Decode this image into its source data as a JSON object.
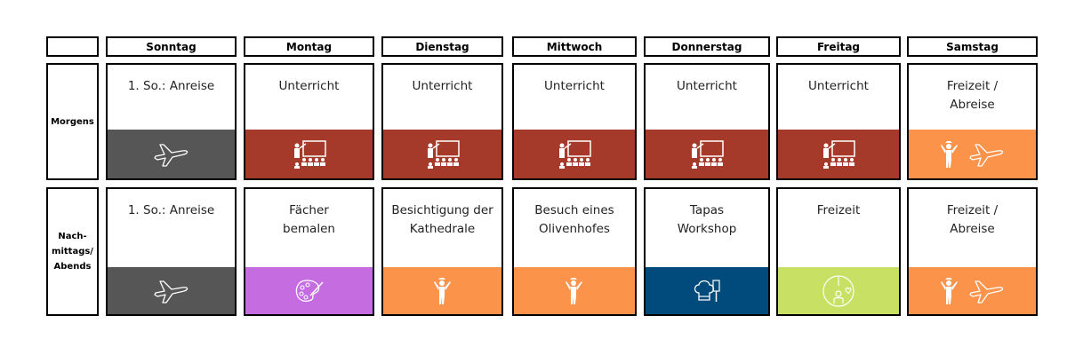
{
  "days": [
    "Sonntag",
    "Montag",
    "Dienstag",
    "Mittwoch",
    "Donnerstag",
    "Freitag",
    "Samstag"
  ],
  "rows": [
    {
      "label": [
        "Morgens"
      ],
      "cells": [
        [
          "1. So.: Anreise"
        ],
        [
          "Unterricht"
        ],
        [
          "Unterricht"
        ],
        [
          "Unterricht"
        ],
        [
          "Unterricht"
        ],
        [
          "Unterricht"
        ],
        [
          "Freizeit /",
          "Abreise"
        ]
      ]
    },
    {
      "label": [
        "Nach-",
        "mittags/",
        "Abends"
      ],
      "cells": [
        [
          "1. So.: Anreise"
        ],
        [
          "Fächer",
          "bemalen"
        ],
        [
          "Besichtigung der",
          "Kathedrale"
        ],
        [
          "Besuch eines",
          "Olivenhofes"
        ],
        [
          "Tapas",
          "Workshop"
        ],
        [
          "Freizeit"
        ],
        [
          "Freizeit /",
          "Abreise"
        ]
      ]
    }
  ]
}
